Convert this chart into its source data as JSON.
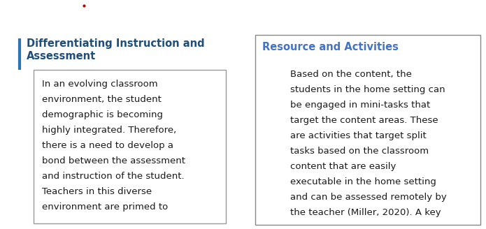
{
  "background_color": "#ffffff",
  "left_section": {
    "heading_line1": "Differentiating Instruction and",
    "heading_line2": "Assessment",
    "heading_color": "#1F4E79",
    "heading_fontsize": 10.5,
    "accent_bar_color": "#2E74B5",
    "body_text": "In an evolving classroom\nenvironment, the student\ndemographic is becoming\nhighly integrated. Therefore,\nthere is a need to develop a\nbond between the assessment\nand instruction of the student.\nTeachers in this diverse\nenvironment are primed to",
    "body_fontsize": 9.5,
    "body_color": "#1a1a1a",
    "box_border_color": "#999999",
    "box_bg": "#ffffff"
  },
  "right_section": {
    "heading": "Resource and Activities",
    "heading_color": "#4472C4",
    "heading_fontsize": 10.5,
    "body_text": "Based on the content, the\nstudents in the home setting can\nbe engaged in mini-tasks that\ntarget the content areas. These\nare activities that target split\ntasks based on the classroom\ncontent that are easily\nexecutable in the home setting\nand can be assessed remotely by\nthe teacher (Miller, 2020). A key",
    "body_fontsize": 9.5,
    "body_color": "#1a1a1a",
    "box_border_color": "#888888",
    "box_bg": "#ffffff"
  },
  "top_dot_color": "#c00000",
  "fig_width": 6.95,
  "fig_height": 3.28,
  "dpi": 100
}
